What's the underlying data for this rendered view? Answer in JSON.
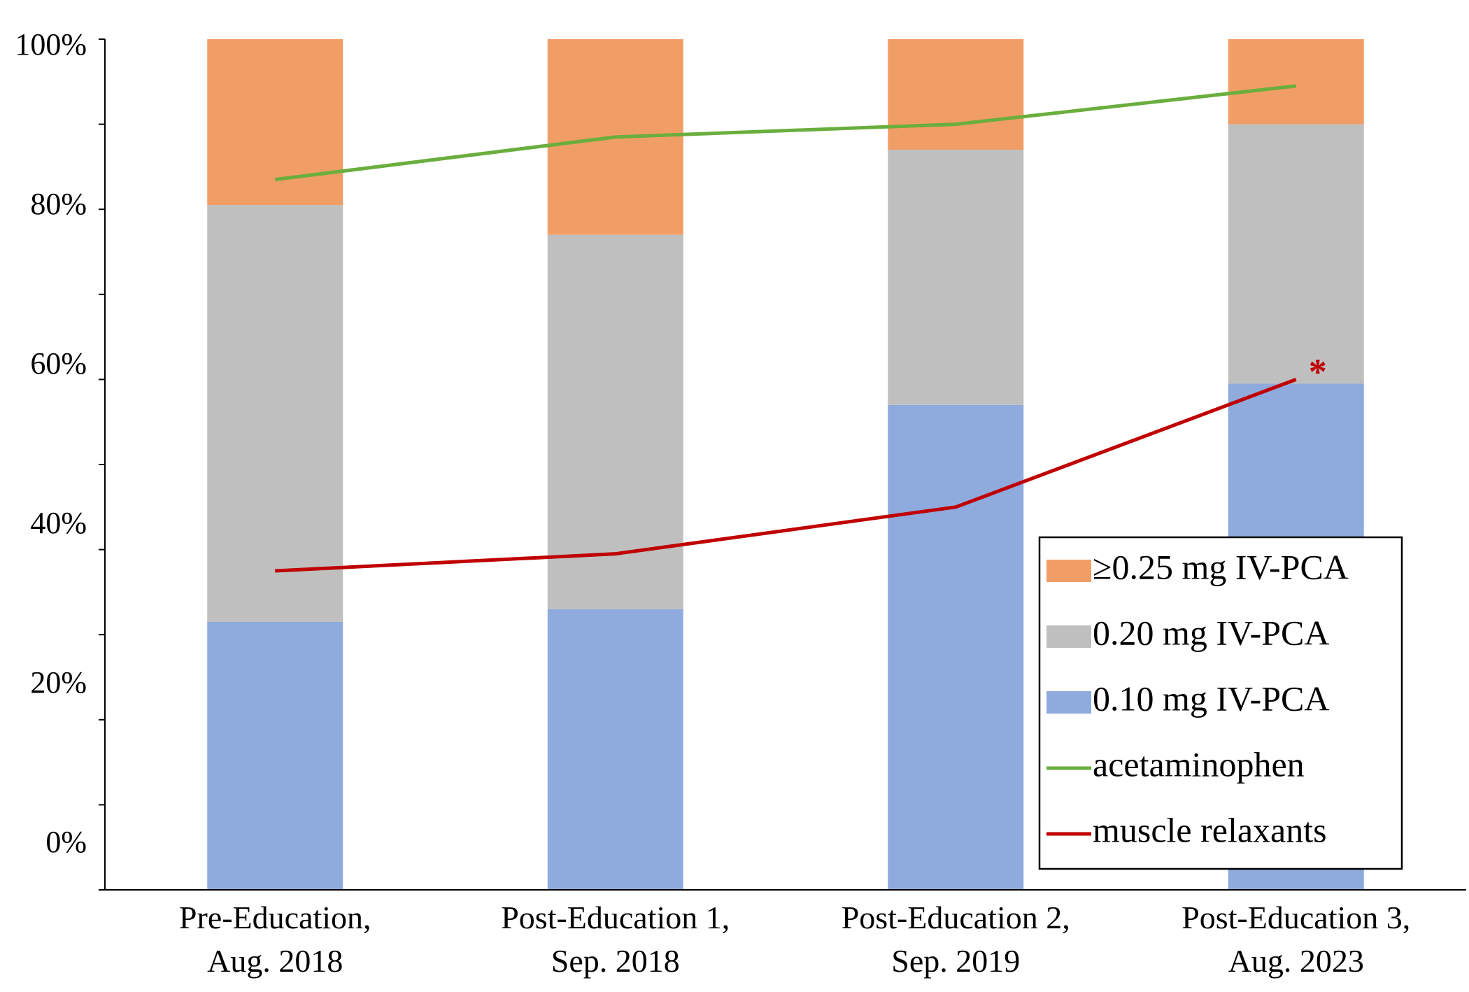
{
  "chart_data": {
    "type": "bar",
    "stacked": true,
    "title": "",
    "xlabel": "",
    "ylabel": "",
    "ylim": [
      0,
      100
    ],
    "ytick_values": [
      0,
      20,
      40,
      60,
      80,
      100
    ],
    "ytick_labels": [
      "0%",
      "20%",
      "40%",
      "60%",
      "80%",
      "100%"
    ],
    "grid": false,
    "legend_position": "bottom-right",
    "categories": [
      [
        "Pre-Education,",
        "Aug. 2018"
      ],
      [
        "Post-Education 1,",
        "Sep. 2018"
      ],
      [
        "Post-Education 2,",
        "Sep. 2019"
      ],
      [
        "Post-Education 3,",
        "Aug. 2023"
      ]
    ],
    "bar_series": [
      {
        "name": "0.10 mg IV-PCA",
        "color": "#8FAADC",
        "values": [
          31.5,
          33,
          57,
          59.5
        ]
      },
      {
        "name": "0.20 mg IV-PCA",
        "color": "#BFBFBF",
        "values": [
          49,
          44,
          30,
          30.5
        ]
      },
      {
        "name": "≥0.25 mg IV-PCA",
        "color": "#F19E66",
        "values": [
          19.5,
          23,
          13,
          10
        ]
      }
    ],
    "line_series": [
      {
        "name": "acetaminophen",
        "color": "#6AAE3E",
        "values": [
          83.5,
          88.5,
          90,
          94.5
        ]
      },
      {
        "name": "muscle relaxants",
        "color": "#C00000",
        "values": [
          37.5,
          39.5,
          45,
          60
        ]
      }
    ],
    "annotations": [
      {
        "text": "*",
        "series": "muscle relaxants",
        "category_index": 3,
        "color": "#C00000"
      }
    ],
    "legend_order": [
      "≥0.25 mg IV-PCA",
      "0.20 mg IV-PCA",
      "0.10 mg IV-PCA",
      "acetaminophen",
      "muscle relaxants"
    ]
  }
}
